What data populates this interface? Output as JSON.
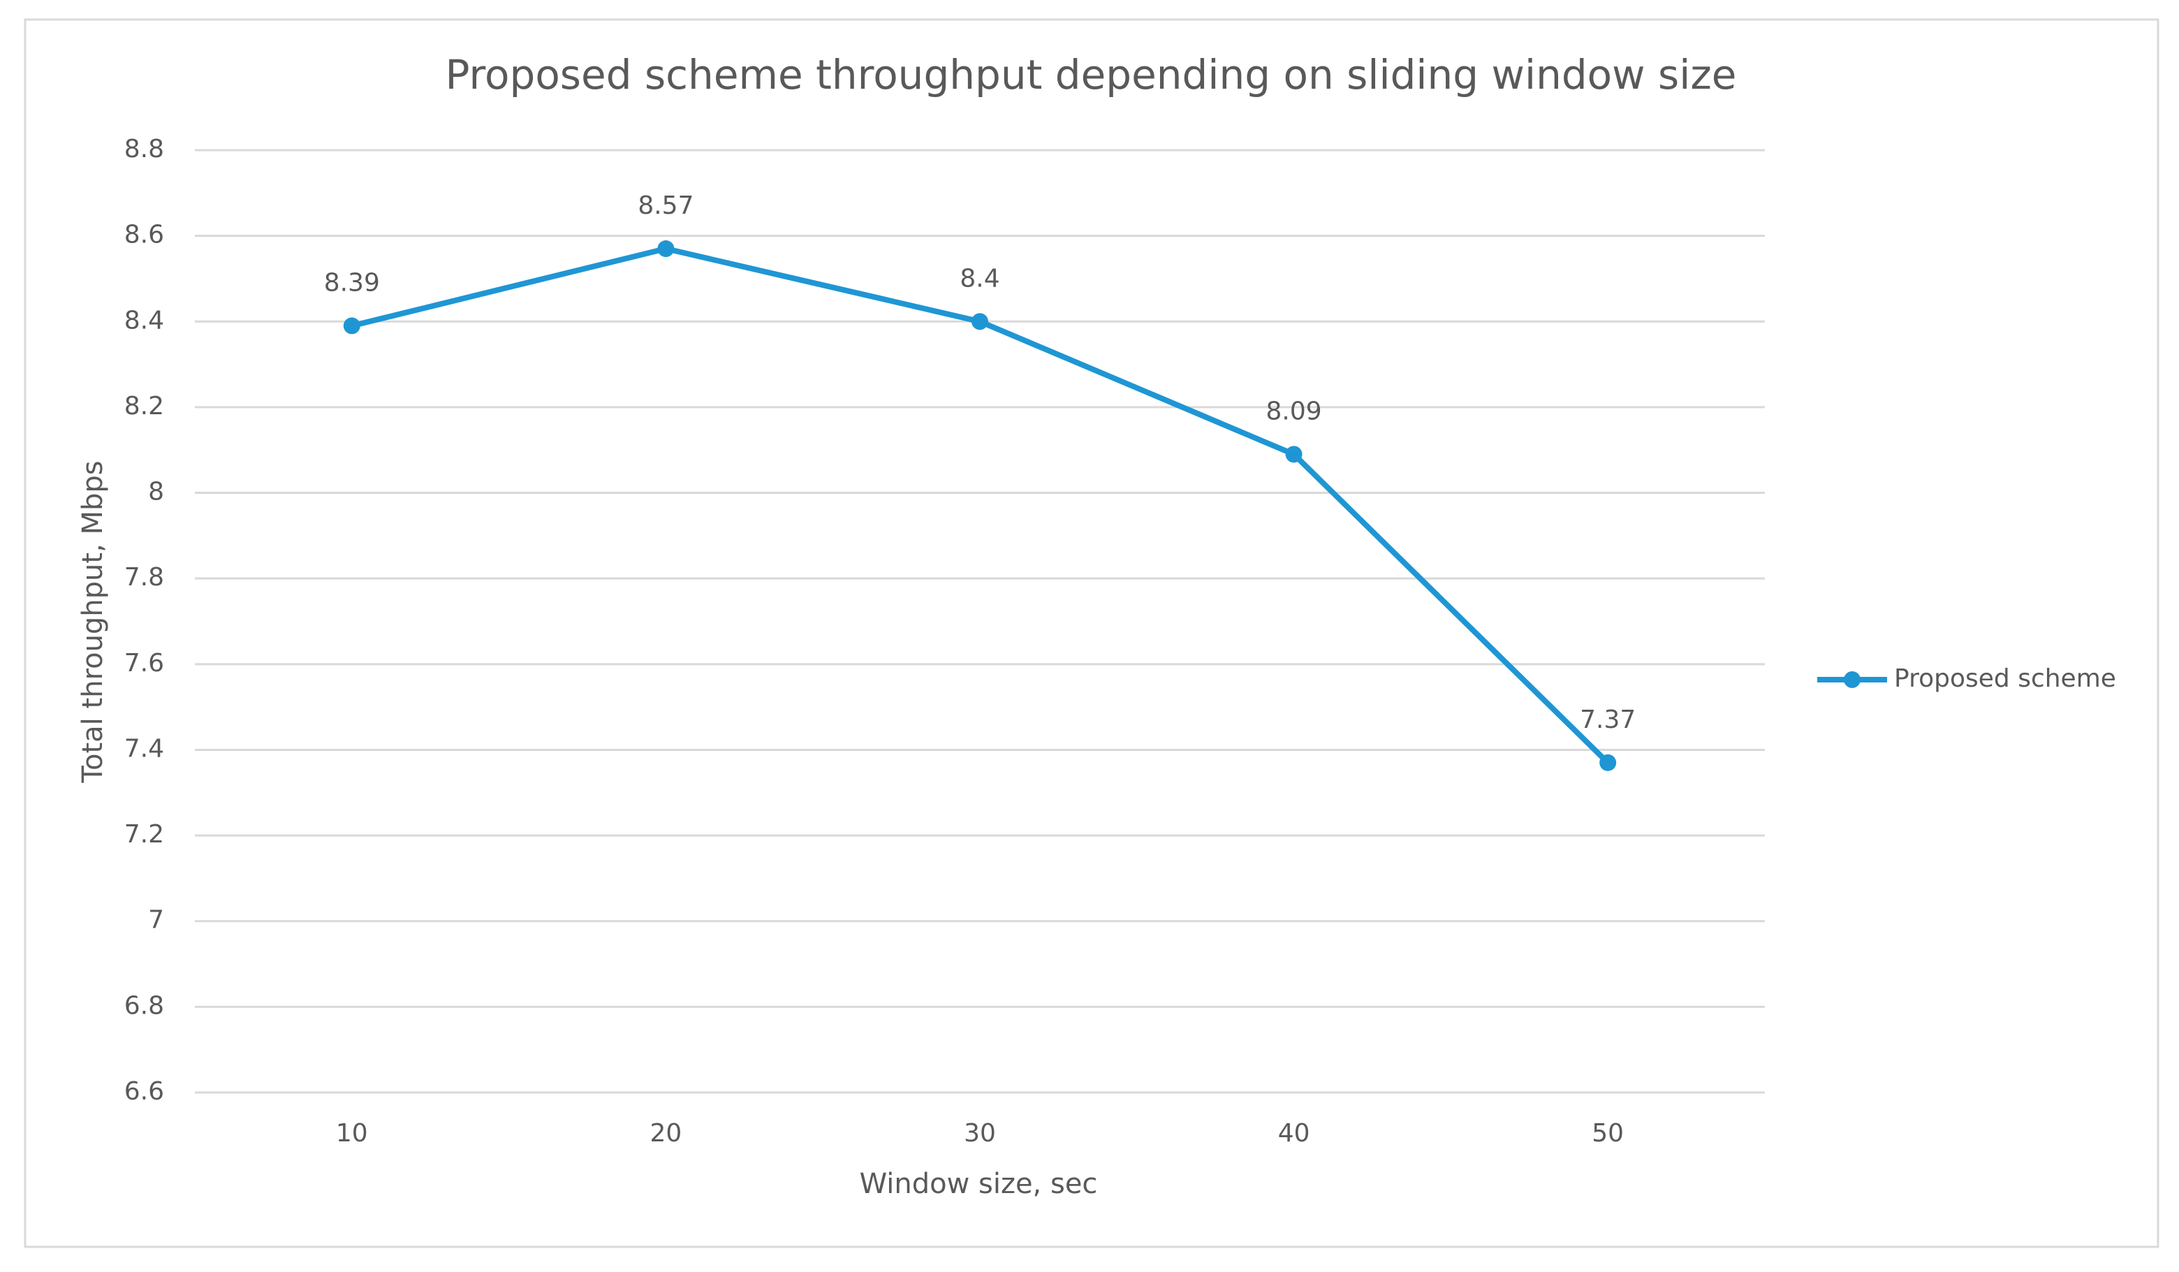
{
  "chart_data": {
    "type": "line",
    "title": "Proposed scheme throughput depending on sliding window size",
    "x_label": "Window size, sec",
    "y_label": "Total throughput, Mbps",
    "categories": [
      "10",
      "20",
      "30",
      "40",
      "50"
    ],
    "series": [
      {
        "name": "Proposed scheme",
        "color": "#1f96d4",
        "values": [
          8.39,
          8.57,
          8.4,
          8.09,
          7.37
        ]
      }
    ],
    "ylim": [
      6.6,
      8.8
    ],
    "yticks": [
      6.6,
      6.8,
      7,
      7.2,
      7.4,
      7.6,
      7.8,
      8,
      8.2,
      8.4,
      8.6,
      8.8
    ],
    "grid": true,
    "legend": "right",
    "data_labels": true
  }
}
